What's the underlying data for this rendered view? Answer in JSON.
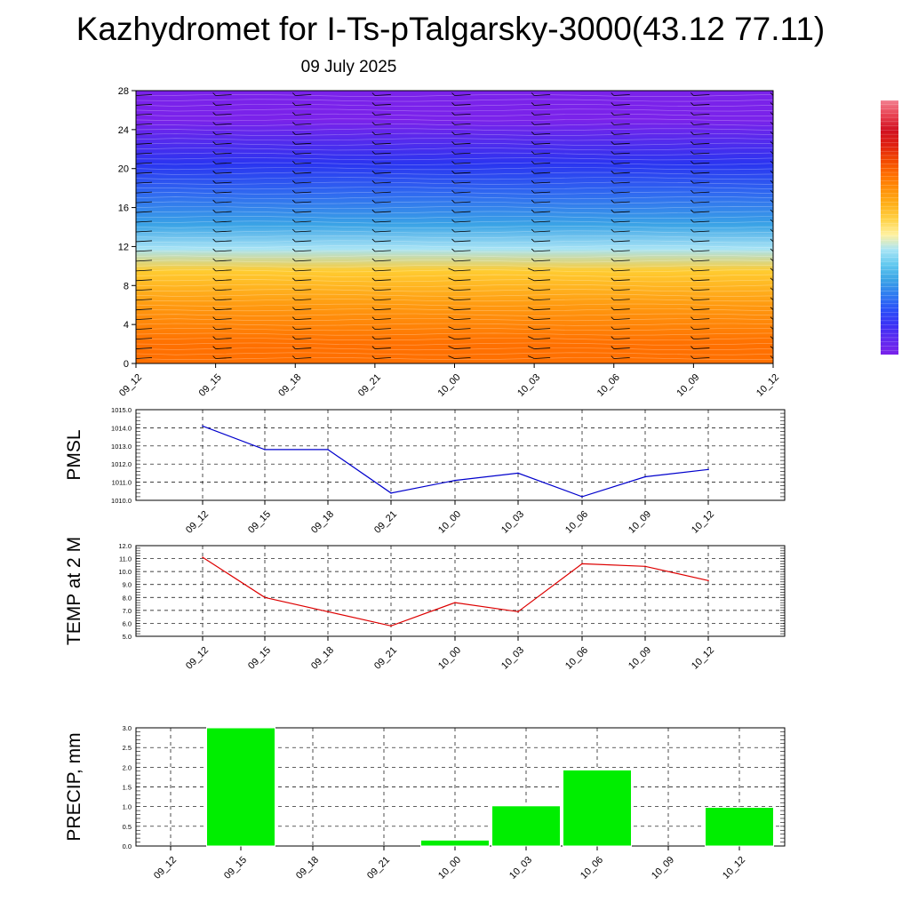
{
  "title": "Kazhydromet for I-Ts-pTalgarsky-3000(43.12 77.11)",
  "date": "09 July 2025",
  "time_labels": [
    "09_12",
    "09_15",
    "09_18",
    "09_21",
    "10_00",
    "10_03",
    "10_06",
    "10_09",
    "10_12"
  ],
  "chart_data": [
    {
      "type": "heatmap",
      "name": "vertical-cross-section",
      "x": [
        "09_12",
        "09_15",
        "09_18",
        "09_21",
        "10_00",
        "10_03",
        "10_06",
        "10_09",
        "10_12"
      ],
      "ylim": [
        0,
        28
      ],
      "yticks": [
        0,
        4,
        8,
        12,
        16,
        20,
        24,
        28
      ],
      "colorbar_colors": [
        "#7a22ea",
        "#5e2af0",
        "#3a32f5",
        "#2a4ff8",
        "#2f7bf0",
        "#3aa3e6",
        "#60c8ef",
        "#a8e4f5",
        "#fff1a0",
        "#ffd34a",
        "#ffb21a",
        "#ff9208",
        "#ff7000",
        "#f24800",
        "#e02010",
        "#d01020",
        "#e84050",
        "#f28090"
      ],
      "heatmap_bands": [
        {
          "y0": 0,
          "y1": 4,
          "color": "#ff7000"
        },
        {
          "y0": 4,
          "y1": 8,
          "color": "#ff9a10"
        },
        {
          "y0": 8,
          "y1": 11,
          "color": "#ffcc30"
        },
        {
          "y0": 11,
          "y1": 12.5,
          "color": "#a8e4f5"
        },
        {
          "y0": 12.5,
          "y1": 16,
          "color": "#3aa3e6"
        },
        {
          "y0": 16,
          "y1": 19,
          "color": "#2f68f0"
        },
        {
          "y0": 19,
          "y1": 22,
          "color": "#2a34f0"
        },
        {
          "y0": 22,
          "y1": 28,
          "color": "#7a22ea"
        }
      ]
    },
    {
      "type": "line",
      "name": "pmsl",
      "ylabel": "PMSL",
      "x": [
        "09_12",
        "09_15",
        "09_18",
        "09_21",
        "10_00",
        "10_03",
        "10_06",
        "10_09",
        "10_12"
      ],
      "values": [
        1014.1,
        1012.8,
        1012.8,
        1010.4,
        1011.1,
        1011.5,
        1010.2,
        1011.3,
        1011.7
      ],
      "ylim": [
        1010.0,
        1015.0
      ],
      "yticks": [
        "1010.0",
        "1011.0",
        "1012.0",
        "1013.0",
        "1014.0",
        "1015.0"
      ],
      "color": "#0000cc",
      "grid": true
    },
    {
      "type": "line",
      "name": "temp",
      "ylabel": "TEMP at 2 M",
      "x": [
        "09_12",
        "09_15",
        "09_18",
        "09_21",
        "10_00",
        "10_03",
        "10_06",
        "10_09",
        "10_12"
      ],
      "values": [
        11.1,
        8.0,
        6.9,
        5.8,
        7.6,
        6.9,
        10.6,
        10.4,
        9.3
      ],
      "ylim": [
        5.0,
        12.0
      ],
      "yticks": [
        "5.0",
        "6.0",
        "7.0",
        "8.0",
        "9.0",
        "10.0",
        "11.0",
        "12.0"
      ],
      "color": "#dd0000",
      "grid": true
    },
    {
      "type": "bar",
      "name": "precip",
      "ylabel": "PRECIP, mm",
      "categories": [
        "09_12",
        "09_15",
        "09_18",
        "09_21",
        "10_00",
        "10_03",
        "10_06",
        "10_09",
        "10_12"
      ],
      "values": [
        0.0,
        3.0,
        0.0,
        0.0,
        0.15,
        1.02,
        1.93,
        0.0,
        0.98
      ],
      "ylim": [
        0.0,
        3.0
      ],
      "yticks": [
        "0.0",
        "0.5",
        "1.0",
        "1.5",
        "2.0",
        "2.5",
        "3.0"
      ],
      "color": "#00ee00",
      "grid": true
    }
  ]
}
